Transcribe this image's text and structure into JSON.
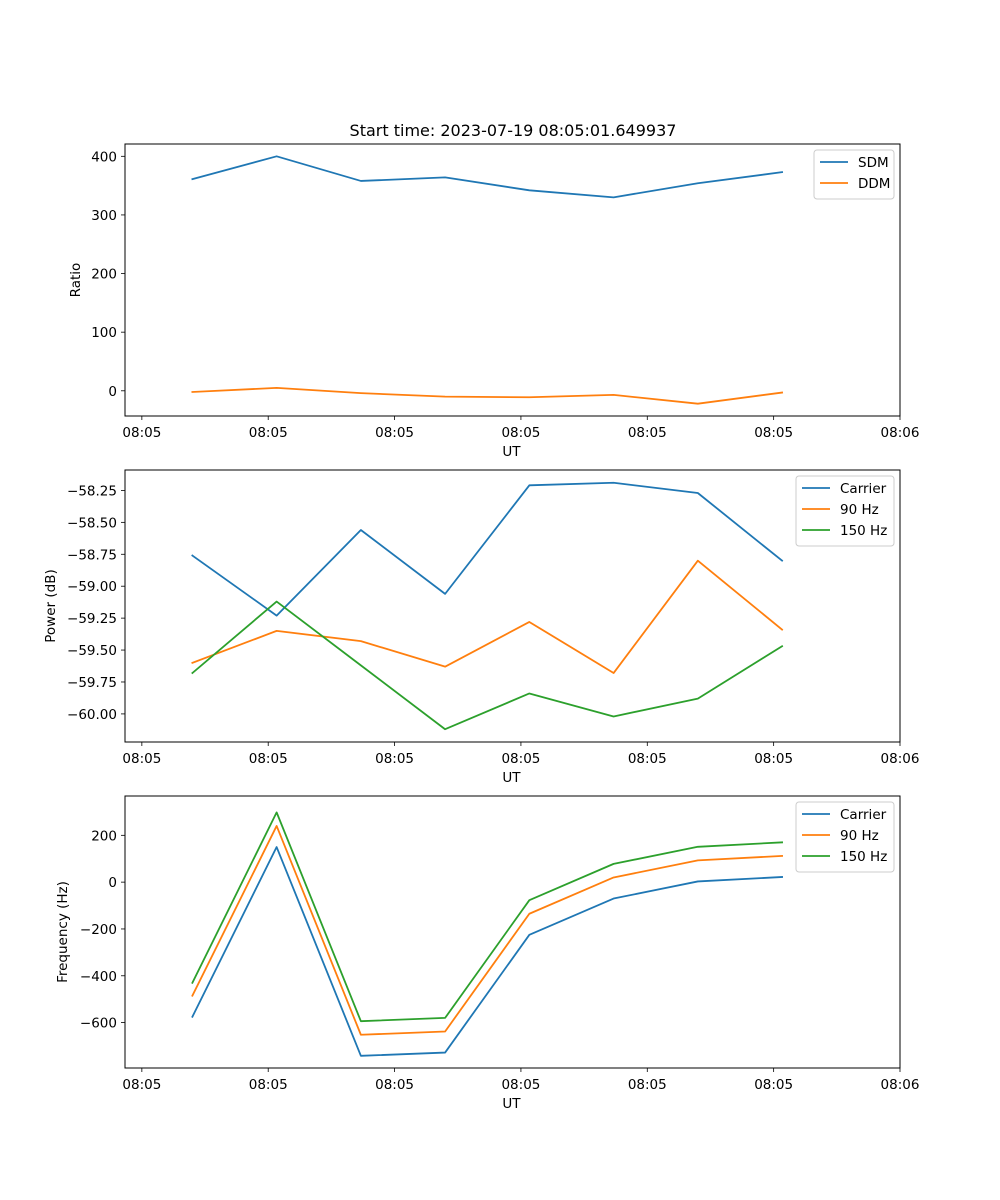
{
  "figure_title": "Start time: 2023-07-19 08:05:01.649937",
  "colors": {
    "c0": "#1f77b4",
    "c1": "#ff7f0e",
    "c2": "#2ca02c"
  },
  "chart_data": [
    {
      "type": "line",
      "title": "Start time: 2023-07-19 08:05:01.649937",
      "xlabel": "UT",
      "ylabel": "Ratio",
      "x": [
        1,
        2,
        3,
        4,
        5,
        6,
        7,
        8
      ],
      "xlim": [
        0.2,
        9.4
      ],
      "xticks": [
        0.4,
        1.9,
        3.4,
        4.9,
        6.4,
        7.9,
        9.4
      ],
      "xtick_labels": [
        "08:05",
        "08:05",
        "08:05",
        "08:05",
        "08:05",
        "08:05",
        "08:06"
      ],
      "ylim": [
        -43,
        421
      ],
      "yticks": [
        0,
        100,
        200,
        300,
        400
      ],
      "ytick_labels": [
        "0",
        "100",
        "200",
        "300",
        "400"
      ],
      "legend_position": "top-right",
      "series": [
        {
          "name": "SDM",
          "color": "#1f77b4",
          "values": [
            361,
            400,
            358,
            364,
            342,
            330,
            354,
            373
          ]
        },
        {
          "name": "DDM",
          "color": "#ff7f0e",
          "values": [
            -2,
            5,
            -4,
            -10,
            -11,
            -7,
            -22,
            -3
          ]
        }
      ]
    },
    {
      "type": "line",
      "xlabel": "UT",
      "ylabel": "Power (dB)",
      "x": [
        1,
        2,
        3,
        4,
        5,
        6,
        7,
        8
      ],
      "xlim": [
        0.2,
        9.4
      ],
      "xticks": [
        0.4,
        1.9,
        3.4,
        4.9,
        6.4,
        7.9,
        9.4
      ],
      "xtick_labels": [
        "08:05",
        "08:05",
        "08:05",
        "08:05",
        "08:05",
        "08:05",
        "08:06"
      ],
      "ylim": [
        -60.22,
        -58.09
      ],
      "yticks": [
        -60.0,
        -59.75,
        -59.5,
        -59.25,
        -59.0,
        -58.75,
        -58.5,
        -58.25
      ],
      "ytick_labels": [
        "−60.00",
        "−59.75",
        "−59.50",
        "−59.25",
        "−59.00",
        "−58.75",
        "−58.50",
        "−58.25"
      ],
      "legend_position": "top-right",
      "series": [
        {
          "name": "Carrier",
          "color": "#1f77b4",
          "values": [
            -58.76,
            -59.23,
            -58.56,
            -59.06,
            -58.21,
            -58.19,
            -58.27,
            -58.8
          ]
        },
        {
          "name": "90 Hz",
          "color": "#ff7f0e",
          "values": [
            -59.6,
            -59.35,
            -59.43,
            -59.63,
            -59.28,
            -59.68,
            -58.8,
            -59.34
          ]
        },
        {
          "name": "150 Hz",
          "color": "#2ca02c",
          "values": [
            -59.68,
            -59.12,
            -59.62,
            -60.12,
            -59.84,
            -60.02,
            -59.88,
            -59.47
          ]
        }
      ]
    },
    {
      "type": "line",
      "xlabel": "UT",
      "ylabel": "Frequency (Hz)",
      "x": [
        1,
        2,
        3,
        4,
        5,
        6,
        7,
        8
      ],
      "xlim": [
        0.2,
        9.4
      ],
      "xticks": [
        0.4,
        1.9,
        3.4,
        4.9,
        6.4,
        7.9,
        9.4
      ],
      "xtick_labels": [
        "08:05",
        "08:05",
        "08:05",
        "08:05",
        "08:05",
        "08:05",
        "08:06"
      ],
      "ylim": [
        -794,
        368
      ],
      "yticks": [
        -600,
        -400,
        -200,
        0,
        200
      ],
      "ytick_labels": [
        "−600",
        "−400",
        "−200",
        "0",
        "200"
      ],
      "legend_position": "top-right",
      "series": [
        {
          "name": "Carrier",
          "color": "#1f77b4",
          "values": [
            -575,
            150,
            -742,
            -728,
            -225,
            -70,
            3,
            22
          ]
        },
        {
          "name": "90 Hz",
          "color": "#ff7f0e",
          "values": [
            -485,
            240,
            -652,
            -638,
            -135,
            20,
            93,
            112
          ]
        },
        {
          "name": "150 Hz",
          "color": "#2ca02c",
          "values": [
            -430,
            298,
            -594,
            -580,
            -77,
            78,
            151,
            170
          ]
        }
      ]
    }
  ]
}
